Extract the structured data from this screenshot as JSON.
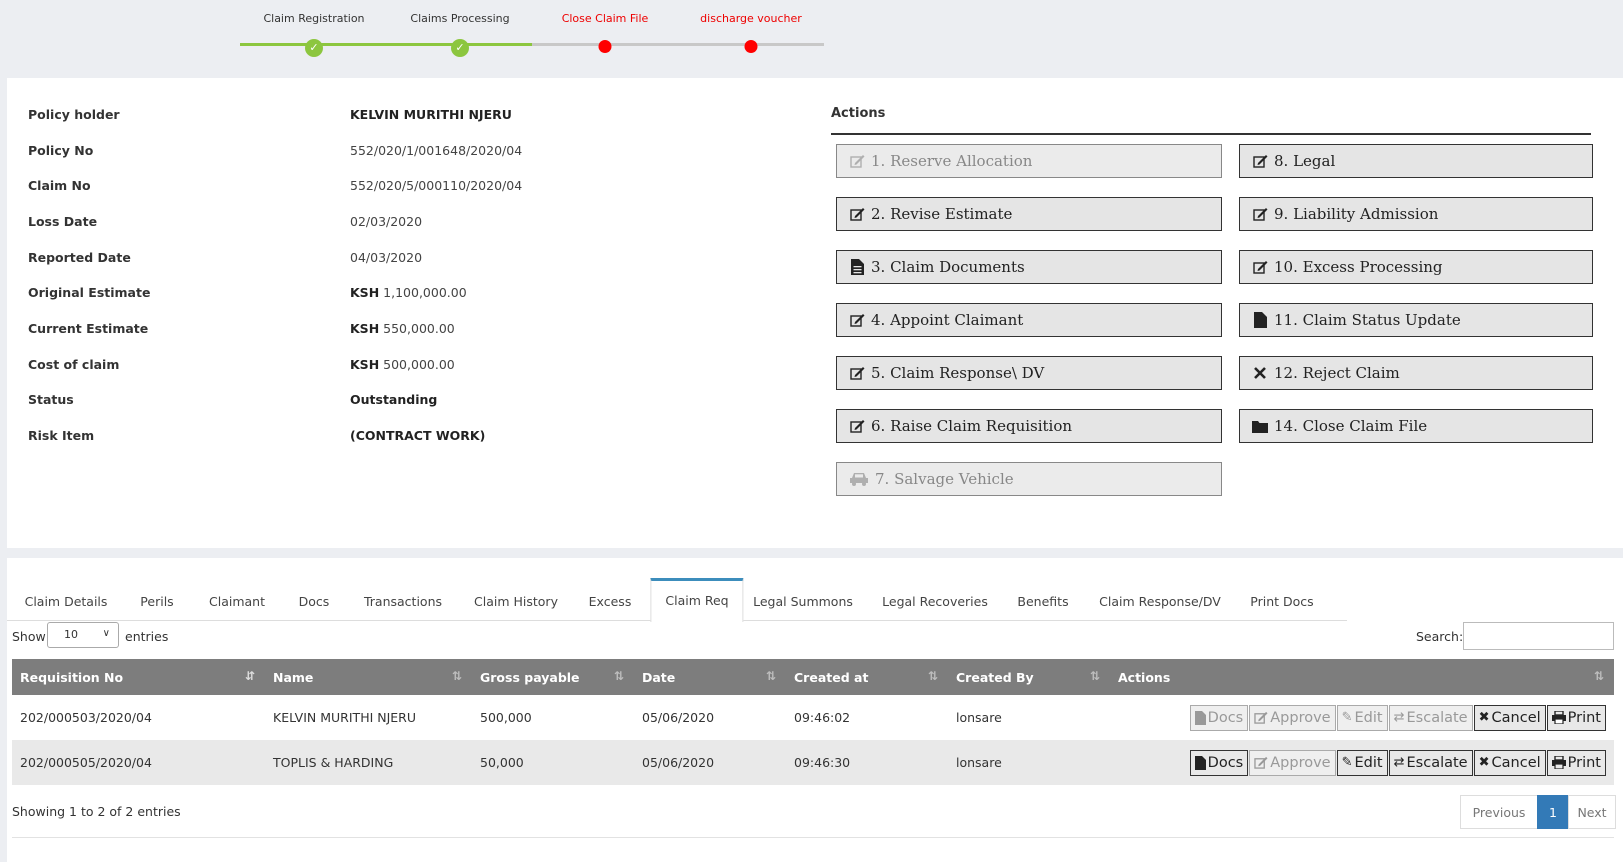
{
  "stepper": {
    "steps": [
      {
        "label": "Claim Registration",
        "state": "done"
      },
      {
        "label": "Claims Processing",
        "state": "done"
      },
      {
        "label": "Close Claim File",
        "state": "pending"
      },
      {
        "label": "discharge voucher",
        "state": "pending"
      }
    ],
    "done_color": "#8cc63f",
    "pending_color": "#ff0000"
  },
  "claim_info": [
    {
      "label": "Policy holder",
      "value": "KELVIN MURITHI NJERU"
    },
    {
      "label": "Policy No",
      "value": "552/020/1/001648/2020/04"
    },
    {
      "label": "Claim No",
      "value": "552/020/5/000110/2020/04"
    },
    {
      "label": "Loss Date",
      "value": "02/03/2020"
    },
    {
      "label": "Reported Date",
      "value": "04/03/2020"
    },
    {
      "label": "Original Estimate",
      "currency": "KSH",
      "value": "1,100,000.00"
    },
    {
      "label": "Current Estimate",
      "currency": "KSH",
      "value": "550,000.00"
    },
    {
      "label": "Cost of claim",
      "currency": "KSH",
      "value": "500,000.00"
    },
    {
      "label": "Status",
      "value": "Outstanding"
    },
    {
      "label": "Risk Item",
      "value": "(CONTRACT WORK)"
    }
  ],
  "actions": {
    "title": "Actions",
    "buttons": [
      {
        "label": "1. Reserve Allocation",
        "icon": "edit-icon",
        "disabled": true
      },
      {
        "label": "8. Legal",
        "icon": "edit-icon",
        "disabled": false
      },
      {
        "label": "2. Revise Estimate",
        "icon": "edit-icon",
        "disabled": false
      },
      {
        "label": "9. Liability Admission",
        "icon": "edit-icon",
        "disabled": false
      },
      {
        "label": "3. Claim Documents",
        "icon": "document-icon",
        "disabled": false
      },
      {
        "label": "10. Excess Processing",
        "icon": "edit-icon",
        "disabled": false
      },
      {
        "label": "4. Appoint Claimant",
        "icon": "edit-icon",
        "disabled": false
      },
      {
        "label": "11. Claim Status Update",
        "icon": "file-icon",
        "disabled": false
      },
      {
        "label": "5. Claim Response\\ DV",
        "icon": "edit-icon",
        "disabled": false
      },
      {
        "label": "12. Reject Claim",
        "icon": "close-icon",
        "disabled": false
      },
      {
        "label": "6. Raise Claim Requisition",
        "icon": "edit-icon",
        "disabled": false
      },
      {
        "label": "14. Close Claim File",
        "icon": "folder-icon",
        "disabled": false
      },
      {
        "label": "7. Salvage Vehicle",
        "icon": "car-icon",
        "disabled": true
      }
    ]
  },
  "tabs": [
    {
      "label": "Claim Details",
      "active": false
    },
    {
      "label": "Perils",
      "active": false
    },
    {
      "label": "Claimant",
      "active": false
    },
    {
      "label": "Docs",
      "active": false
    },
    {
      "label": "Transactions",
      "active": false
    },
    {
      "label": "Claim History",
      "active": false
    },
    {
      "label": "Excess",
      "active": false
    },
    {
      "label": "Claim Req",
      "active": true
    },
    {
      "label": "Legal Summons",
      "active": false
    },
    {
      "label": "Legal Recoveries",
      "active": false
    },
    {
      "label": "Benefits",
      "active": false
    },
    {
      "label": "Claim Response/DV",
      "active": false
    },
    {
      "label": "Print Docs",
      "active": false
    }
  ],
  "table_controls": {
    "show_label": "Show",
    "entries_value": "10",
    "entries_label": "entries",
    "search_label": "Search:",
    "search_value": ""
  },
  "table": {
    "columns": [
      "Requisition No",
      "Name",
      "Gross payable",
      "Date",
      "Created at",
      "Created By",
      "Actions"
    ],
    "rows": [
      {
        "req_no": "202/000503/2020/04",
        "name": "KELVIN MURITHI NJERU",
        "gross": "500,000",
        "date": "05/06/2020",
        "created_at": "09:46:02",
        "created_by": "lonsare",
        "buttons": [
          {
            "label": "Docs",
            "icon": "file-icon",
            "disabled": true
          },
          {
            "label": "Approve",
            "icon": "edit-icon",
            "disabled": true
          },
          {
            "label": "Edit",
            "icon": "pencil-icon",
            "disabled": true
          },
          {
            "label": "Escalate",
            "icon": "exchange-icon",
            "disabled": true
          },
          {
            "label": "Cancel",
            "icon": "close-icon",
            "disabled": false
          },
          {
            "label": "Print",
            "icon": "print-icon",
            "disabled": false
          }
        ]
      },
      {
        "req_no": "202/000505/2020/04",
        "name": "TOPLIS & HARDING",
        "gross": "50,000",
        "date": "05/06/2020",
        "created_at": "09:46:30",
        "created_by": "lonsare",
        "buttons": [
          {
            "label": "Docs",
            "icon": "file-icon",
            "disabled": false
          },
          {
            "label": "Approve",
            "icon": "edit-icon",
            "disabled": true
          },
          {
            "label": "Edit",
            "icon": "pencil-icon",
            "disabled": false
          },
          {
            "label": "Escalate",
            "icon": "exchange-icon",
            "disabled": false
          },
          {
            "label": "Cancel",
            "icon": "close-icon",
            "disabled": false
          },
          {
            "label": "Print",
            "icon": "print-icon",
            "disabled": false
          }
        ]
      }
    ]
  },
  "footer": {
    "info": "Showing 1 to 2 of 2 entries",
    "previous": "Previous",
    "page": "1",
    "next": "Next"
  }
}
